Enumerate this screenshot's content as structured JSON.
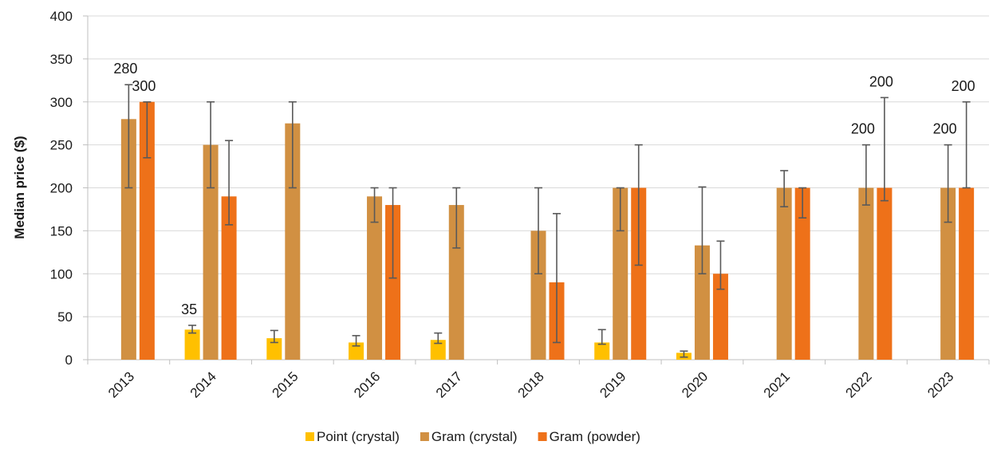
{
  "chart_data": {
    "type": "bar",
    "title": "",
    "xlabel": "",
    "ylabel": "Median price ($)",
    "ylim": [
      0,
      400
    ],
    "yticks": [
      0,
      50,
      100,
      150,
      200,
      250,
      300,
      350,
      400
    ],
    "grid": true,
    "legend_position": "bottom",
    "categories": [
      "2013",
      "2014",
      "2015",
      "2016",
      "2017",
      "2018",
      "2019",
      "2020",
      "2021",
      "2022",
      "2023"
    ],
    "series": [
      {
        "name": "Point (crystal)",
        "color": "#FFC000",
        "values": [
          null,
          35,
          25,
          20,
          23,
          null,
          20,
          8,
          null,
          null,
          null
        ],
        "error_low": [
          null,
          31,
          20,
          16,
          19,
          null,
          18,
          3,
          null,
          null,
          null
        ],
        "error_high": [
          null,
          40,
          34,
          28,
          31,
          null,
          35,
          10,
          null,
          null,
          null
        ]
      },
      {
        "name": "Gram (crystal)",
        "color": "#D19042",
        "values": [
          280,
          250,
          275,
          190,
          180,
          150,
          200,
          133,
          200,
          200,
          200
        ],
        "error_low": [
          200,
          200,
          200,
          160,
          130,
          100,
          150,
          100,
          178,
          180,
          160
        ],
        "error_high": [
          320,
          300,
          300,
          200,
          200,
          200,
          200,
          201,
          220,
          250,
          250
        ]
      },
      {
        "name": "Gram (powder)",
        "color": "#EE7119",
        "values": [
          300,
          190,
          null,
          180,
          null,
          90,
          200,
          100,
          200,
          200,
          200
        ],
        "error_low": [
          235,
          157,
          null,
          95,
          null,
          20,
          110,
          82,
          165,
          185,
          200
        ],
        "error_high": [
          300,
          255,
          null,
          200,
          null,
          170,
          250,
          138,
          200,
          305,
          300
        ]
      }
    ],
    "data_labels": [
      {
        "category": "2013",
        "series": "Gram (crystal)",
        "text": "280"
      },
      {
        "category": "2013",
        "series": "Gram (powder)",
        "text": "300"
      },
      {
        "category": "2014",
        "series": "Point (crystal)",
        "text": "35"
      },
      {
        "category": "2022",
        "series": "Gram (crystal)",
        "text": "200"
      },
      {
        "category": "2022",
        "series": "Gram (powder)",
        "text": "200"
      },
      {
        "category": "2023",
        "series": "Gram (crystal)",
        "text": "200"
      },
      {
        "category": "2023",
        "series": "Gram (powder)",
        "text": "200"
      }
    ]
  }
}
